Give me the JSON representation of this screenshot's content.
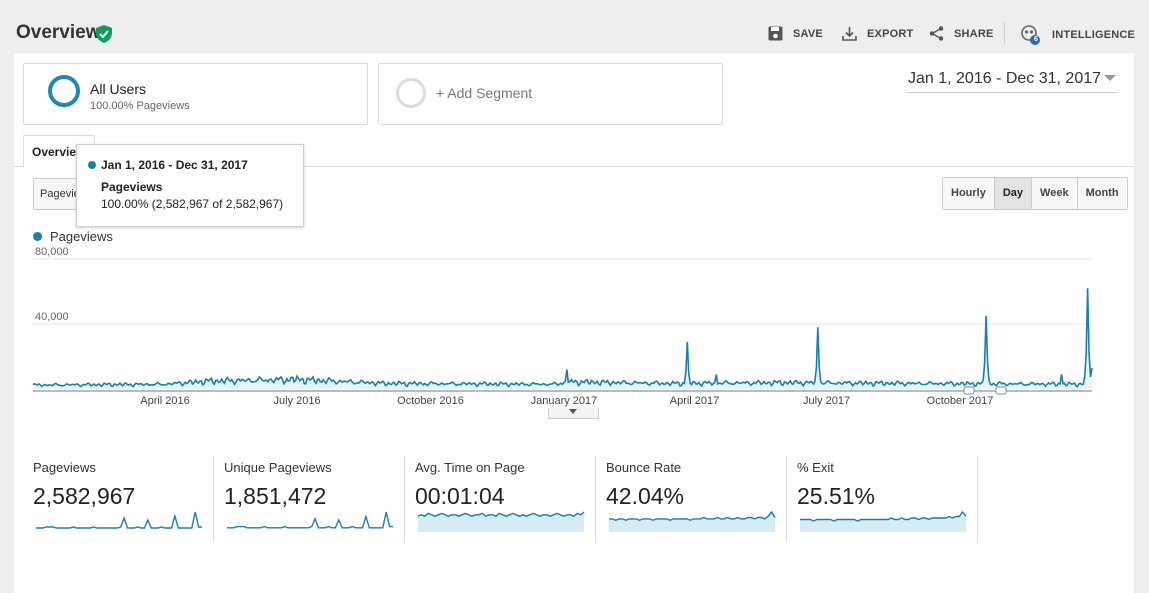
{
  "header": {
    "title": "Overview",
    "actions": {
      "save": "SAVE",
      "export": "EXPORT",
      "share": "SHARE",
      "intelligence": "INTELLIGENCE",
      "intelligence_badge": "6"
    }
  },
  "segments": {
    "active": {
      "name": "All Users",
      "sub": "100.00% Pageviews"
    },
    "add_label": "+ Add Segment"
  },
  "date_range": "Jan 1, 2016 - Dec 31, 2017",
  "tabs": {
    "overview": "Overview"
  },
  "metric_selector": "Pageviews",
  "granularity": {
    "options": [
      "Hourly",
      "Day",
      "Week",
      "Month"
    ],
    "selected": "Day"
  },
  "legend": {
    "series": "Pageviews"
  },
  "tooltip": {
    "date": "Jan 1, 2016 - Dec 31, 2017",
    "metric": "Pageviews",
    "value": "100.00% (2,582,967 of 2,582,967)"
  },
  "colors": {
    "series": "#1a7fab",
    "accent_green": "#0f9d58",
    "fill": "#d7ebf3"
  },
  "chart_data": {
    "type": "line",
    "title": "",
    "series_name": "Pageviews",
    "x_range": [
      "2016-01-01",
      "2017-12-31"
    ],
    "ylim": [
      0,
      80000
    ],
    "y_ticks": [
      "80,000",
      "40,000"
    ],
    "x_tick_labels": [
      "April 2016",
      "July 2016",
      "October 2016",
      "January 2017",
      "April 2017",
      "July 2017",
      "October 2017"
    ],
    "grid": true,
    "baseline": [
      {
        "date": "2016-01-01",
        "value": 2500
      },
      {
        "date": "2016-04-01",
        "value": 3000
      },
      {
        "date": "2016-05-01",
        "value": 5000
      },
      {
        "date": "2016-07-01",
        "value": 6000
      },
      {
        "date": "2016-09-01",
        "value": 3500
      },
      {
        "date": "2016-12-25",
        "value": 3000
      },
      {
        "date": "2017-01-05",
        "value": 4500
      },
      {
        "date": "2017-03-15",
        "value": 3500
      },
      {
        "date": "2017-06-01",
        "value": 4000
      },
      {
        "date": "2017-09-01",
        "value": 3500
      },
      {
        "date": "2017-12-31",
        "value": 3000
      }
    ],
    "spikes": [
      {
        "date": "2017-01-03",
        "value": 12000
      },
      {
        "date": "2017-03-27",
        "value": 29000
      },
      {
        "date": "2017-04-16",
        "value": 9000
      },
      {
        "date": "2017-06-25",
        "value": 38000
      },
      {
        "date": "2017-10-19",
        "value": 45000
      },
      {
        "date": "2017-12-10",
        "value": 9000
      },
      {
        "date": "2017-12-28",
        "value": 62000
      },
      {
        "date": "2017-12-31",
        "value": 13000
      }
    ]
  },
  "scorecards": [
    {
      "label": "Pageviews",
      "value": "2,582,967",
      "spark": [
        2,
        2,
        2,
        3,
        3,
        3,
        2,
        2,
        2,
        2,
        2,
        3,
        2,
        2,
        2,
        2,
        2,
        3,
        2,
        2,
        2,
        2,
        2,
        2,
        2,
        3,
        12,
        2,
        2,
        2,
        3,
        2,
        2,
        10,
        2,
        2,
        2,
        3,
        2,
        2,
        2,
        14,
        2,
        2,
        2,
        2,
        2,
        18,
        3,
        3
      ]
    },
    {
      "label": "Unique Pageviews",
      "value": "1,851,472",
      "spark": [
        2,
        2,
        2,
        3,
        3,
        3,
        2,
        2,
        2,
        2,
        2,
        3,
        2,
        2,
        2,
        2,
        2,
        3,
        2,
        2,
        2,
        2,
        2,
        2,
        2,
        3,
        10,
        2,
        2,
        2,
        3,
        2,
        2,
        9,
        2,
        2,
        2,
        3,
        2,
        2,
        2,
        12,
        2,
        2,
        2,
        2,
        2,
        16,
        3,
        3
      ]
    },
    {
      "label": "Avg. Time on Page",
      "value": "00:01:04",
      "spark": [
        10,
        11,
        10,
        12,
        11,
        10,
        11,
        12,
        11,
        10,
        11,
        11,
        10,
        11,
        12,
        11,
        10,
        11,
        11,
        12,
        10,
        11,
        11,
        10,
        12,
        11,
        10,
        11,
        12,
        11,
        10,
        11,
        10,
        11,
        12,
        11,
        10,
        11,
        11,
        10,
        11,
        12,
        11,
        10,
        11,
        11,
        10,
        12,
        11,
        13
      ]
    },
    {
      "label": "Bounce Rate",
      "value": "42.04%",
      "spark": [
        8,
        8,
        7,
        8,
        8,
        7,
        8,
        8,
        8,
        7,
        8,
        8,
        8,
        7,
        8,
        8,
        8,
        8,
        7,
        8,
        8,
        8,
        8,
        8,
        7,
        8,
        8,
        8,
        9,
        8,
        8,
        8,
        9,
        8,
        8,
        9,
        8,
        8,
        9,
        8,
        8,
        9,
        9,
        8,
        9,
        9,
        8,
        10,
        13,
        9
      ]
    },
    {
      "label": "% Exit",
      "value": "25.51%",
      "spark": [
        7,
        7,
        7,
        7,
        6,
        7,
        7,
        7,
        7,
        7,
        6,
        7,
        7,
        7,
        7,
        7,
        7,
        6,
        7,
        7,
        7,
        7,
        7,
        7,
        7,
        7,
        7,
        8,
        7,
        7,
        8,
        7,
        7,
        8,
        8,
        7,
        8,
        8,
        7,
        8,
        8,
        8,
        8,
        8,
        9,
        8,
        9,
        9,
        12,
        9
      ]
    }
  ]
}
